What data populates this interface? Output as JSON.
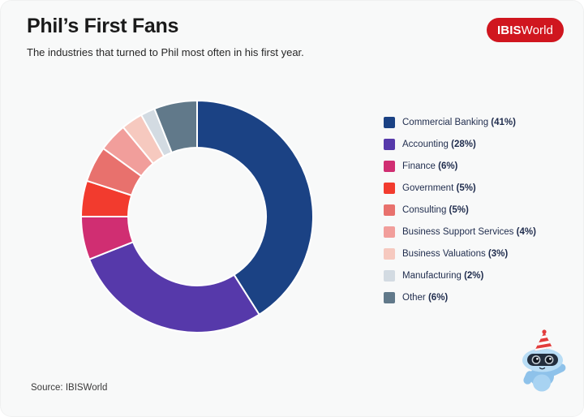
{
  "page": {
    "background": "#f8f9f9"
  },
  "header": {
    "title": "Phil’s First Fans",
    "subtitle": "The industries that turned to Phil most often in his first year.",
    "logo": {
      "text_bold": "IBIS",
      "text_regular": "World",
      "background": "#d0161f",
      "text_color": "#ffffff"
    }
  },
  "chart_data": {
    "type": "pie",
    "subtype": "donut",
    "title": "Phil’s First Fans",
    "subtitle": "The industries that turned to Phil most often in his first year.",
    "categories": [
      "Commercial Banking",
      "Accounting",
      "Finance",
      "Government",
      "Consulting",
      "Business Support Services",
      "Business Valuations",
      "Manufacturing",
      "Other"
    ],
    "values": [
      41,
      28,
      6,
      5,
      5,
      4,
      3,
      2,
      6
    ],
    "unit": "%",
    "colors": [
      "#1b4284",
      "#5639aa",
      "#d02e72",
      "#f23b2e",
      "#e8716d",
      "#f19e9b",
      "#f6c9bf",
      "#d3dbe2",
      "#61798a"
    ],
    "start_angle": "12 o'clock",
    "direction": "clockwise",
    "donut_hole_ratio": 0.594,
    "slice_gap_color": "#ffffff",
    "legend_position": "right",
    "legend_label_format": "{category} ({value}%)"
  },
  "footer": {
    "source": "Source: IBISWorld"
  },
  "mascot": {
    "description": "robot with party hat",
    "head": "#b9ddf5",
    "body": "#8ec2ea",
    "belly": "#a8d3f2",
    "visor": "#232e3d",
    "eye_ring": "#c6cfd6",
    "eye_dark": "#10161f",
    "highlight": "#ffffff",
    "hat_red": "#e23c3c",
    "hat_white": "#ffffff"
  }
}
